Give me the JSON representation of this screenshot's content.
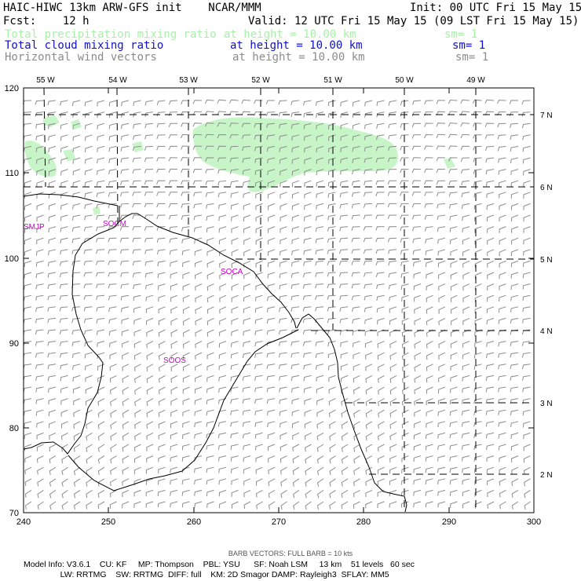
{
  "header": {
    "model": "HAIC-HIWC 13km ARW-GFS init    NCAR/MMM",
    "init": "Init: 00 UTC Fri 15 May 15",
    "fcst": "Fcst:    12 h",
    "valid": "Valid: 12 UTC Fri 15 May 15 (09 LST Fri 15 May 15)"
  },
  "legend": [
    {
      "name": "Total precipitation mixing ratio",
      "height": "at height = 10.00 km",
      "sm": "sm= 1",
      "color": "#a8f0a8"
    },
    {
      "name": "Total cloud mixing ratio",
      "height": "at height = 10.00 km",
      "sm": "sm= 1",
      "color": "#1010cc"
    },
    {
      "name": "Horizontal wind vectors",
      "height": "at height = 10.00 km",
      "sm": "sm= 1",
      "color": "#8c8c8c"
    }
  ],
  "axes": {
    "x_ticks": [
      "240",
      "250",
      "260",
      "270",
      "280",
      "290",
      "300"
    ],
    "y_ticks": [
      "70",
      "80",
      "90",
      "100",
      "110",
      "120"
    ],
    "lon_labels": [
      "55 W",
      "54 W",
      "53 W",
      "52 W",
      "51 W",
      "50 W",
      "49 W"
    ],
    "lat_labels": [
      "7 N",
      "6 N",
      "5 N",
      "4 N",
      "3 N",
      "2 N"
    ]
  },
  "stations": [
    "SMJP",
    "SOCM",
    "SOCA",
    "SOOS"
  ],
  "footer": {
    "barb": "BARB VECTORS:  FULL BARB = 10 kts",
    "info1": "Model Info: V3.6.1    CU: KF     MP: Thompson    PBL: YSU      SF: Noah LSM     13 km    51 levels   60 sec",
    "info2": "                LW: RRTMG    SW: RRTMG  DIFF: full    KM: 2D Smagor DAMP: Rayleigh3  SFLAY: MM5"
  },
  "colors": {
    "precip": "#c8f5c8",
    "station": "#cc00cc",
    "barb": "#8c8c8c",
    "grid": "#000000"
  }
}
